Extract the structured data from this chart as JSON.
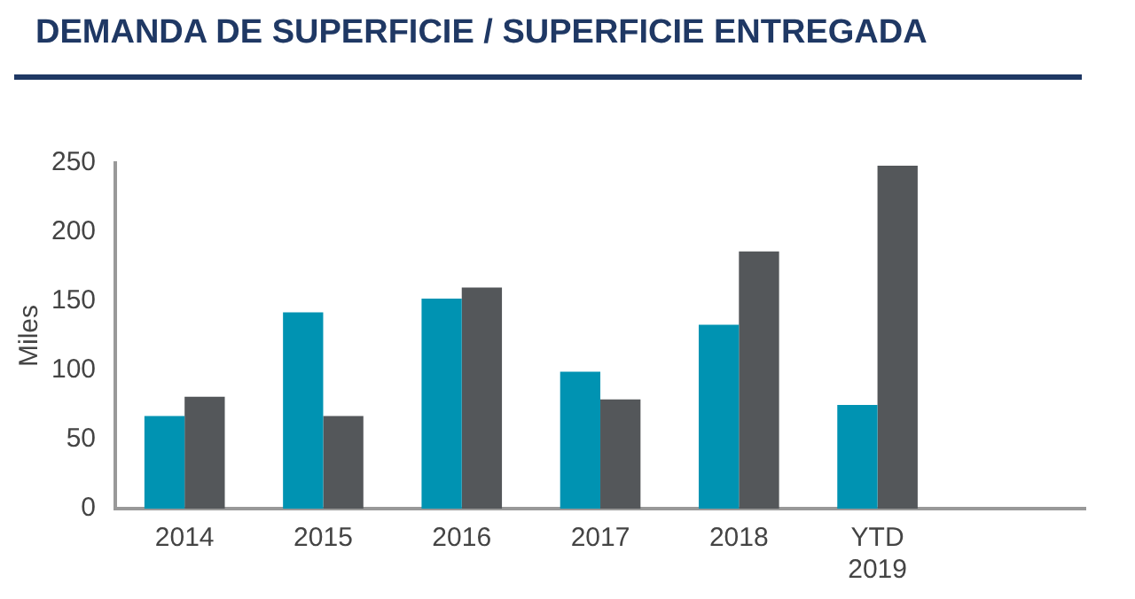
{
  "chart_data": {
    "type": "bar",
    "title": "DEMANDA DE SUPERFICIE / SUPERFICIE ENTREGADA",
    "ylabel": "Miles",
    "categories": [
      "2014",
      "2015",
      "2016",
      "2017",
      "2018",
      "YTD 2019",
      null
    ],
    "series": [
      {
        "color": "#0093b2",
        "values": [
          67,
          142,
          152,
          99,
          133,
          75,
          null
        ]
      },
      {
        "color": "#54575a",
        "values": [
          81,
          67,
          160,
          79,
          186,
          248,
          null
        ]
      }
    ],
    "ylim": [
      0,
      250
    ],
    "yticks": [
      0,
      50,
      100,
      150,
      200,
      250
    ],
    "grid": false,
    "legend": false
  }
}
